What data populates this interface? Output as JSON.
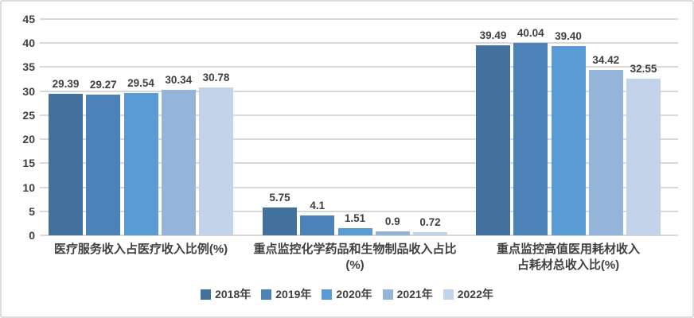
{
  "chart_data": {
    "type": "bar",
    "title": "",
    "xlabel": "",
    "ylabel": "",
    "ylim": [
      0,
      45
    ],
    "ytick_step": 5,
    "yticks": [
      "45",
      "40",
      "35",
      "30",
      "25",
      "20",
      "15",
      "10",
      "5",
      "0"
    ],
    "grid": true,
    "legend_position": "bottom-center",
    "categories": [
      "医疗服务收入占医疗收入比例(%)",
      "重点监控化学药品和生物制品收入占比(%)",
      "重点监控高值医用耗材收入占耗材总收入比(%)"
    ],
    "category_label_lines": [
      [
        "医疗服务收入占医疗收入比例(%)"
      ],
      [
        "重点监控化学药品和生物制品收入占比",
        "(%)"
      ],
      [
        "重点监控高值医用耗材收入",
        "占耗材总收入比(%)"
      ]
    ],
    "series": [
      {
        "name": "2018年",
        "color": "#41719C",
        "values": [
          29.39,
          5.75,
          39.49
        ],
        "labels": [
          "29.39",
          "5.75",
          "39.49"
        ]
      },
      {
        "name": "2019年",
        "color": "#4D82B8",
        "values": [
          29.27,
          4.1,
          40.04
        ],
        "labels": [
          "29.27",
          "4.1",
          "40.04"
        ]
      },
      {
        "name": "2020年",
        "color": "#5B9BD5",
        "values": [
          29.54,
          1.51,
          39.4
        ],
        "labels": [
          "29.54",
          "1.51",
          "39.40"
        ]
      },
      {
        "name": "2021年",
        "color": "#94B4DA",
        "values": [
          30.34,
          0.9,
          34.42
        ],
        "labels": [
          "30.34",
          "0.9",
          "34.42"
        ]
      },
      {
        "name": "2022年",
        "color": "#C3D3EA",
        "values": [
          30.78,
          0.72,
          32.55
        ],
        "labels": [
          "30.78",
          "0.72",
          "32.55"
        ]
      }
    ],
    "colors": {
      "text": "#404040",
      "gridline": "#D9D9D9",
      "frame_border": "#DCDCDC",
      "background": "#FFFFFF"
    }
  }
}
